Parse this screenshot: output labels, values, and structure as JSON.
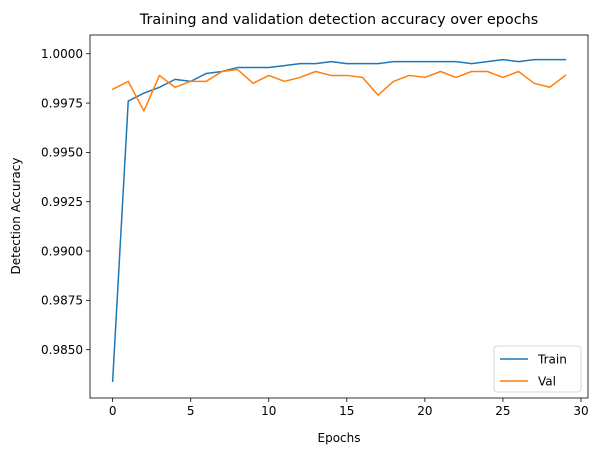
{
  "chart_data": {
    "type": "line",
    "title": "Training and validation detection accuracy over epochs",
    "xlabel": "Epochs",
    "ylabel": "Detection Accuracy",
    "xlim": [
      -1.45,
      30.45
    ],
    "ylim": [
      0.98255,
      1.00095
    ],
    "xticks": [
      0,
      5,
      10,
      15,
      20,
      25,
      30
    ],
    "xtick_labels": [
      "0",
      "5",
      "10",
      "15",
      "20",
      "25",
      "30"
    ],
    "yticks": [
      0.985,
      0.9875,
      0.99,
      0.9925,
      0.995,
      0.9975,
      1.0
    ],
    "ytick_labels": [
      "0.9850",
      "0.9875",
      "0.9900",
      "0.9925",
      "0.9950",
      "0.9975",
      "1.0000"
    ],
    "grid": false,
    "legend_position": "bottom-right",
    "x": [
      0,
      1,
      2,
      3,
      4,
      5,
      6,
      7,
      8,
      9,
      10,
      11,
      12,
      13,
      14,
      15,
      16,
      17,
      18,
      19,
      20,
      21,
      22,
      23,
      24,
      25,
      26,
      27,
      28,
      29
    ],
    "series": [
      {
        "name": "Train",
        "color": "#1f77b4",
        "values": [
          0.9834,
          0.9976,
          0.998,
          0.9983,
          0.9987,
          0.9986,
          0.999,
          0.9991,
          0.9993,
          0.9993,
          0.9993,
          0.9994,
          0.9995,
          0.9995,
          0.9996,
          0.9995,
          0.9995,
          0.9995,
          0.9996,
          0.9996,
          0.9996,
          0.9996,
          0.9996,
          0.9995,
          0.9996,
          0.9997,
          0.9996,
          0.9997,
          0.9997,
          0.9997
        ]
      },
      {
        "name": "Val",
        "color": "#ff7f0e",
        "values": [
          0.9982,
          0.9986,
          0.9971,
          0.9989,
          0.9983,
          0.9986,
          0.9986,
          0.9991,
          0.9992,
          0.9985,
          0.9989,
          0.9986,
          0.9988,
          0.9991,
          0.9989,
          0.9989,
          0.9988,
          0.9979,
          0.9986,
          0.9989,
          0.9988,
          0.9991,
          0.9988,
          0.9991,
          0.9991,
          0.9988,
          0.9991,
          0.9985,
          0.9983,
          0.9989
        ]
      }
    ]
  }
}
